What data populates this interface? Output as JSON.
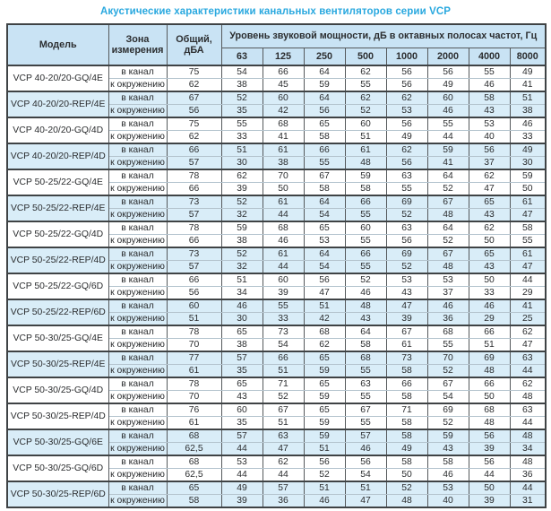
{
  "title": "Акустические характеристики канальных вентиляторов  серии VCP",
  "colors": {
    "title_accent": "#29a8df",
    "header_bg": "#c9e3f4",
    "row_highlight_bg": "#d9edf8",
    "border_dark": "#55595c",
    "border_light": "#b4c4ce",
    "text": "#2b2d2f"
  },
  "table": {
    "headers": {
      "model": "Модель",
      "zone": "Зона измерения",
      "total": "Общий, дБА",
      "spectrum": "Уровень звуковой мощности, дБ в октавных полосах частот, Гц",
      "frequencies": [
        "63",
        "125",
        "250",
        "500",
        "1000",
        "2000",
        "4000",
        "8000"
      ]
    },
    "zone_labels": {
      "duct": "в канал",
      "ambient": "к окружению"
    },
    "rows": [
      {
        "model": "VCP 40-20/20-GQ/4E",
        "highlighted": false,
        "duct": {
          "total": "75",
          "values": [
            "54",
            "66",
            "64",
            "62",
            "56",
            "56",
            "55",
            "49"
          ]
        },
        "ambient": {
          "total": "62",
          "values": [
            "38",
            "45",
            "59",
            "55",
            "56",
            "49",
            "46",
            "41"
          ]
        }
      },
      {
        "model": "VCP 40-20/20-REP/4E",
        "highlighted": true,
        "duct": {
          "total": "67",
          "values": [
            "52",
            "60",
            "64",
            "62",
            "62",
            "60",
            "58",
            "51"
          ]
        },
        "ambient": {
          "total": "56",
          "values": [
            "35",
            "42",
            "56",
            "52",
            "53",
            "46",
            "43",
            "38"
          ]
        }
      },
      {
        "model": "VCP 40-20/20-GQ/4D",
        "highlighted": false,
        "duct": {
          "total": "75",
          "values": [
            "55",
            "68",
            "65",
            "60",
            "56",
            "55",
            "53",
            "46"
          ]
        },
        "ambient": {
          "total": "62",
          "values": [
            "33",
            "41",
            "58",
            "51",
            "49",
            "44",
            "40",
            "33"
          ]
        }
      },
      {
        "model": "VCP 40-20/20-REP/4D",
        "highlighted": true,
        "duct": {
          "total": "66",
          "values": [
            "51",
            "61",
            "66",
            "61",
            "62",
            "59",
            "56",
            "49"
          ]
        },
        "ambient": {
          "total": "57",
          "values": [
            "30",
            "38",
            "55",
            "48",
            "56",
            "41",
            "37",
            "30"
          ]
        }
      },
      {
        "model": "VCP 50-25/22-GQ/4E",
        "highlighted": false,
        "duct": {
          "total": "78",
          "values": [
            "62",
            "70",
            "67",
            "59",
            "63",
            "64",
            "62",
            "59"
          ]
        },
        "ambient": {
          "total": "66",
          "values": [
            "39",
            "50",
            "58",
            "58",
            "55",
            "52",
            "47",
            "50"
          ]
        }
      },
      {
        "model": "VCP 50-25/22-REP/4E",
        "highlighted": true,
        "duct": {
          "total": "73",
          "values": [
            "52",
            "61",
            "64",
            "66",
            "69",
            "67",
            "65",
            "61"
          ]
        },
        "ambient": {
          "total": "57",
          "values": [
            "32",
            "44",
            "54",
            "55",
            "52",
            "48",
            "43",
            "47"
          ]
        }
      },
      {
        "model": "VCP 50-25/22-GQ/4D",
        "highlighted": false,
        "duct": {
          "total": "78",
          "values": [
            "59",
            "68",
            "65",
            "60",
            "63",
            "64",
            "62",
            "58"
          ]
        },
        "ambient": {
          "total": "66",
          "values": [
            "38",
            "46",
            "53",
            "55",
            "56",
            "52",
            "50",
            "55"
          ]
        }
      },
      {
        "model": "VCP 50-25/22-REP/4D",
        "highlighted": true,
        "duct": {
          "total": "73",
          "values": [
            "52",
            "61",
            "64",
            "66",
            "69",
            "67",
            "65",
            "61"
          ]
        },
        "ambient": {
          "total": "57",
          "values": [
            "32",
            "44",
            "54",
            "55",
            "52",
            "48",
            "43",
            "47"
          ]
        }
      },
      {
        "model": "VCP 50-25/22-GQ/6D",
        "highlighted": false,
        "duct": {
          "total": "66",
          "values": [
            "51",
            "60",
            "56",
            "52",
            "53",
            "53",
            "50",
            "44"
          ]
        },
        "ambient": {
          "total": "56",
          "values": [
            "34",
            "39",
            "47",
            "46",
            "43",
            "37",
            "33",
            "29"
          ]
        }
      },
      {
        "model": "VCP 50-25/22-REP/6D",
        "highlighted": true,
        "duct": {
          "total": "60",
          "values": [
            "46",
            "55",
            "51",
            "48",
            "47",
            "46",
            "46",
            "41"
          ]
        },
        "ambient": {
          "total": "51",
          "values": [
            "30",
            "33",
            "42",
            "43",
            "39",
            "36",
            "29",
            "25"
          ]
        }
      },
      {
        "model": "VCP 50-30/25-GQ/4E",
        "highlighted": false,
        "duct": {
          "total": "78",
          "values": [
            "65",
            "73",
            "68",
            "64",
            "67",
            "68",
            "66",
            "62"
          ]
        },
        "ambient": {
          "total": "70",
          "values": [
            "38",
            "54",
            "62",
            "58",
            "61",
            "55",
            "51",
            "47"
          ]
        }
      },
      {
        "model": "VCP 50-30/25-REP/4E",
        "highlighted": true,
        "duct": {
          "total": "77",
          "values": [
            "57",
            "66",
            "65",
            "68",
            "73",
            "70",
            "69",
            "63"
          ]
        },
        "ambient": {
          "total": "61",
          "values": [
            "35",
            "51",
            "59",
            "55",
            "58",
            "52",
            "48",
            "44"
          ]
        }
      },
      {
        "model": "VCP 50-30/25-GQ/4D",
        "highlighted": false,
        "duct": {
          "total": "78",
          "values": [
            "65",
            "71",
            "65",
            "63",
            "66",
            "67",
            "66",
            "62"
          ]
        },
        "ambient": {
          "total": "70",
          "values": [
            "43",
            "52",
            "59",
            "55",
            "58",
            "54",
            "50",
            "48"
          ]
        }
      },
      {
        "model": "VCP 50-30/25-REP/4D",
        "highlighted": false,
        "duct": {
          "total": "76",
          "values": [
            "60",
            "67",
            "65",
            "67",
            "71",
            "69",
            "68",
            "63"
          ]
        },
        "ambient": {
          "total": "61",
          "values": [
            "35",
            "51",
            "59",
            "55",
            "58",
            "52",
            "48",
            "44"
          ]
        }
      },
      {
        "model": "VCP 50-30/25-GQ/6E",
        "highlighted": true,
        "duct": {
          "total": "68",
          "values": [
            "57",
            "63",
            "59",
            "57",
            "58",
            "59",
            "56",
            "48"
          ]
        },
        "ambient": {
          "total": "62,5",
          "values": [
            "44",
            "47",
            "51",
            "46",
            "49",
            "43",
            "39",
            "34"
          ]
        }
      },
      {
        "model": "VCP 50-30/25-GQ/6D",
        "highlighted": false,
        "duct": {
          "total": "68",
          "values": [
            "53",
            "62",
            "56",
            "56",
            "58",
            "58",
            "56",
            "48"
          ]
        },
        "ambient": {
          "total": "62,5",
          "values": [
            "44",
            "44",
            "52",
            "54",
            "50",
            "46",
            "44",
            "36"
          ]
        }
      },
      {
        "model": "VCP 50-30/25-REP/6D",
        "highlighted": true,
        "duct": {
          "total": "65",
          "values": [
            "49",
            "57",
            "51",
            "51",
            "52",
            "53",
            "50",
            "44"
          ]
        },
        "ambient": {
          "total": "58",
          "values": [
            "39",
            "36",
            "46",
            "47",
            "48",
            "40",
            "39",
            "31"
          ]
        }
      }
    ]
  }
}
